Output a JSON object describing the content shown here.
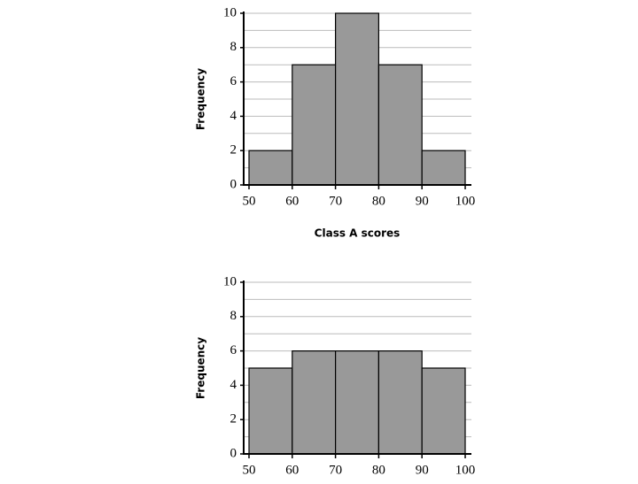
{
  "chart_data": [
    {
      "type": "histogram",
      "xlabel": "Class A scores",
      "ylabel": "Frequency",
      "bins": [
        50,
        60,
        70,
        80,
        90,
        100
      ],
      "values": [
        2,
        7,
        10,
        7,
        2
      ],
      "color": "#999999",
      "xlim": [
        50,
        100
      ],
      "xticks": [
        50,
        60,
        70,
        80,
        90,
        100
      ],
      "ylim": [
        0,
        10
      ],
      "yticks": [
        0,
        2,
        4,
        6,
        8,
        10
      ],
      "minor_yticks": [
        1,
        3,
        5,
        7,
        9
      ],
      "grid": true
    },
    {
      "type": "histogram",
      "ylabel": "Frequency",
      "bins": [
        50,
        60,
        70,
        80,
        90,
        100
      ],
      "values": [
        5,
        6,
        6,
        6,
        5
      ],
      "color": "#999999",
      "xlim": [
        50,
        100
      ],
      "xticks": [
        50,
        60,
        70,
        80,
        90,
        100
      ],
      "ylim": [
        0,
        10
      ],
      "yticks": [
        0,
        2,
        4,
        6,
        8,
        10
      ],
      "minor_yticks": [
        1,
        3,
        5,
        7,
        9
      ],
      "grid": true
    }
  ]
}
